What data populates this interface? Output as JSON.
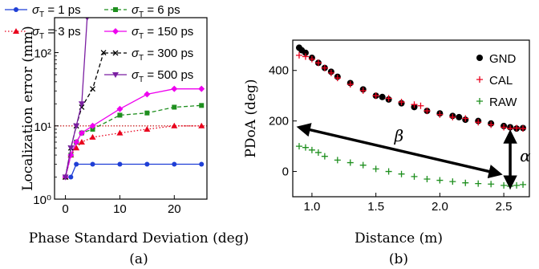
{
  "chart_data": [
    {
      "type": "line",
      "panel_label": "(a)",
      "xlabel": "Phase Standard Deviation (deg)",
      "ylabel": "Localization error (mm)",
      "yscale": "log",
      "xlim": [
        -2,
        26
      ],
      "ylim": [
        1,
        300
      ],
      "x_ticks": [
        "0",
        "10",
        "20"
      ],
      "y_ticks": [
        "10⁰",
        "10¹",
        "10²"
      ],
      "reference_line": {
        "y": 10,
        "color": "#c00000",
        "style": "dotted"
      },
      "series": [
        {
          "name": "σT = 1 ps",
          "name_main": "σ",
          "name_sub": "T",
          "name_rest": " = 1 ps",
          "color": "#1f3fd6",
          "marker": "circle",
          "dash": "solid",
          "x": [
            0,
            1,
            2,
            5,
            10,
            15,
            20,
            25
          ],
          "y": [
            2,
            2,
            3,
            3,
            3,
            3,
            3,
            3
          ]
        },
        {
          "name": "σT = 3 ps",
          "name_main": "σ",
          "name_sub": "T",
          "name_rest": " = 3 ps",
          "color": "#e8001c",
          "marker": "triangle",
          "dash": "dotted",
          "x": [
            0,
            1,
            2,
            3,
            5,
            10,
            15,
            20,
            25
          ],
          "y": [
            2,
            4,
            5,
            6,
            7,
            8,
            9,
            10,
            10
          ]
        },
        {
          "name": "σT = 6 ps",
          "name_main": "σ",
          "name_sub": "T",
          "name_rest": " = 6 ps",
          "color": "#1e8f1e",
          "marker": "square",
          "dash": "dashed",
          "x": [
            0,
            1,
            2,
            3,
            5,
            10,
            15,
            20,
            25
          ],
          "y": [
            2,
            4,
            6,
            8,
            9,
            14,
            15,
            18,
            19
          ]
        },
        {
          "name": "σT = 150 ps",
          "name_main": "σ",
          "name_sub": "T",
          "name_rest": " = 150 ps",
          "color": "#ee00ee",
          "marker": "diamond",
          "dash": "solid",
          "x": [
            0,
            1,
            2,
            3,
            5,
            10,
            15,
            20,
            25
          ],
          "y": [
            2,
            4,
            6,
            8,
            10,
            17,
            27,
            32,
            32
          ]
        },
        {
          "name": "σT = 300 ps",
          "name_main": "σ",
          "name_sub": "T",
          "name_rest": " = 300 ps",
          "color": "#000000",
          "marker": "x",
          "dash": "dashed",
          "x": [
            0,
            1,
            2,
            3,
            5,
            7
          ],
          "y": [
            2,
            5,
            10,
            18,
            32,
            100
          ]
        },
        {
          "name": "σT = 500 ps",
          "name_main": "σ",
          "name_sub": "T",
          "name_rest": " = 500 ps",
          "color": "#7b1fa2",
          "marker": "triangle-down",
          "dash": "solid",
          "x": [
            0,
            1,
            2,
            3,
            4
          ],
          "y": [
            2,
            5,
            10,
            20,
            300
          ]
        }
      ]
    },
    {
      "type": "scatter",
      "panel_label": "(b)",
      "xlabel": "Distance (m)",
      "ylabel": "PDoA (deg)",
      "xlim": [
        0.85,
        2.7
      ],
      "ylim": [
        -100,
        520
      ],
      "x_ticks": [
        "1.0",
        "1.5",
        "2.0",
        "2.5"
      ],
      "y_ticks": [
        "0",
        "200",
        "400"
      ],
      "annotations": {
        "beta": "β",
        "alpha": "α"
      },
      "series": [
        {
          "name": "GND",
          "color": "#000000",
          "marker": "dot",
          "x": [
            0.9,
            0.92,
            0.95,
            1.0,
            1.05,
            1.1,
            1.15,
            1.2,
            1.3,
            1.4,
            1.5,
            1.55,
            1.6,
            1.7,
            1.8,
            1.9,
            2.0,
            2.1,
            2.15,
            2.2,
            2.3,
            2.4,
            2.5,
            2.55,
            2.6,
            2.65
          ],
          "y": [
            490,
            480,
            470,
            450,
            430,
            410,
            395,
            375,
            350,
            325,
            300,
            295,
            285,
            270,
            255,
            240,
            230,
            220,
            215,
            205,
            200,
            190,
            180,
            175,
            170,
            172
          ]
        },
        {
          "name": "CAL",
          "color": "#e8001c",
          "marker": "plus",
          "x": [
            0.9,
            0.95,
            1.0,
            1.05,
            1.1,
            1.15,
            1.2,
            1.3,
            1.4,
            1.5,
            1.6,
            1.7,
            1.8,
            1.85,
            1.9,
            2.0,
            2.1,
            2.2,
            2.3,
            2.4,
            2.5,
            2.55,
            2.6,
            2.65
          ],
          "y": [
            460,
            455,
            445,
            430,
            410,
            390,
            370,
            345,
            320,
            300,
            290,
            275,
            265,
            260,
            240,
            225,
            215,
            210,
            195,
            185,
            175,
            170,
            172,
            170
          ]
        },
        {
          "name": "RAW",
          "color": "#1e8f1e",
          "marker": "plus",
          "x": [
            0.9,
            0.95,
            1.0,
            1.05,
            1.1,
            1.2,
            1.3,
            1.4,
            1.5,
            1.6,
            1.7,
            1.8,
            1.9,
            2.0,
            2.1,
            2.2,
            2.3,
            2.4,
            2.5,
            2.55,
            2.6,
            2.65
          ],
          "y": [
            100,
            95,
            85,
            75,
            60,
            45,
            35,
            25,
            10,
            0,
            -10,
            -20,
            -30,
            -35,
            -40,
            -45,
            -48,
            -50,
            -55,
            -58,
            -55,
            -52
          ]
        }
      ]
    }
  ]
}
